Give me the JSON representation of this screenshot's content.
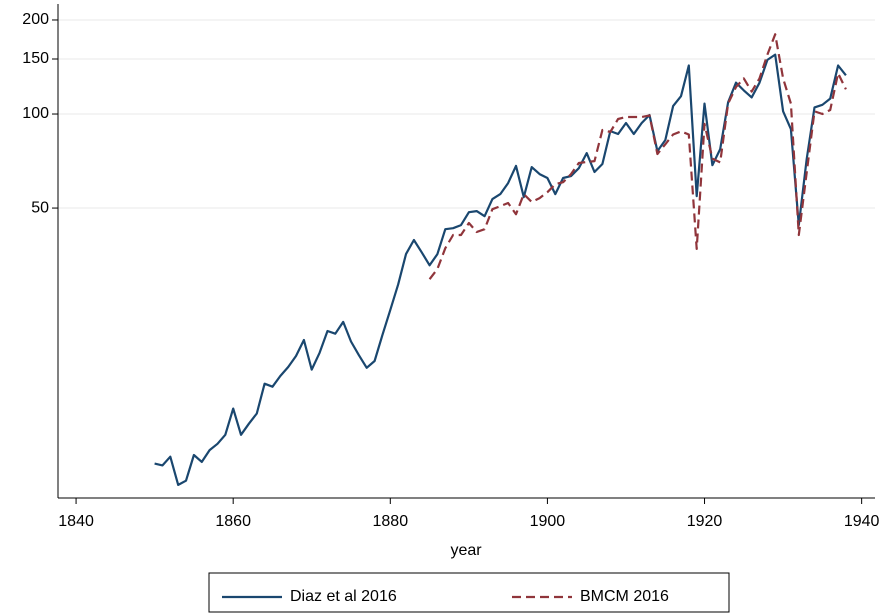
{
  "chart_data": {
    "type": "line",
    "xlabel": "year",
    "x": [
      1850,
      1851,
      1852,
      1853,
      1854,
      1855,
      1856,
      1857,
      1858,
      1859,
      1860,
      1861,
      1862,
      1863,
      1864,
      1865,
      1866,
      1867,
      1868,
      1869,
      1870,
      1871,
      1872,
      1873,
      1874,
      1875,
      1876,
      1877,
      1878,
      1879,
      1880,
      1881,
      1882,
      1883,
      1884,
      1885,
      1886,
      1887,
      1888,
      1889,
      1890,
      1891,
      1892,
      1893,
      1894,
      1895,
      1896,
      1897,
      1898,
      1899,
      1900,
      1901,
      1902,
      1903,
      1904,
      1905,
      1906,
      1907,
      1908,
      1909,
      1910,
      1911,
      1912,
      1913,
      1914,
      1915,
      1916,
      1917,
      1918,
      1919,
      1920,
      1921,
      1922,
      1923,
      1924,
      1925,
      1926,
      1927,
      1928,
      1929,
      1930,
      1931,
      1932,
      1933,
      1934,
      1935,
      1936,
      1937,
      1938
    ],
    "series": [
      {
        "name": "Diaz et al 2016",
        "color": "#1a476f",
        "dash": false,
        "values": [
          7.6,
          7.5,
          8.0,
          6.5,
          6.7,
          8.1,
          7.7,
          8.4,
          8.8,
          9.4,
          11.4,
          9.4,
          10.2,
          11.0,
          13.7,
          13.4,
          14.5,
          15.5,
          16.8,
          18.9,
          15.2,
          17.2,
          20.2,
          19.8,
          21.6,
          18.7,
          16.9,
          15.4,
          16.2,
          19.6,
          23.6,
          28.5,
          35.6,
          39.5,
          36.1,
          32.8,
          35.6,
          42.8,
          43.1,
          44.1,
          48.5,
          48.9,
          47.1,
          53.4,
          55.4,
          60.1,
          68.2,
          54.2,
          67.6,
          64.2,
          62.4,
          55.4,
          62.4,
          63.3,
          67.1,
          75.0,
          65.2,
          69.2,
          88.2,
          86.3,
          93.6,
          86.3,
          93.6,
          99.3,
          76.1,
          82.5,
          106,
          114,
          143,
          54.6,
          108,
          68.6,
          77.2,
          109,
          126,
          119,
          113,
          126,
          149,
          155,
          102,
          89.5,
          44.1,
          71.8,
          105,
          107,
          112,
          143,
          133
        ]
      },
      {
        "name": "BMCM 2016",
        "color": "#90353b",
        "dash": true,
        "values": [
          null,
          null,
          null,
          null,
          null,
          null,
          null,
          null,
          null,
          null,
          null,
          null,
          null,
          null,
          null,
          null,
          null,
          null,
          null,
          null,
          null,
          null,
          null,
          null,
          null,
          null,
          null,
          null,
          null,
          null,
          null,
          null,
          null,
          null,
          null,
          29.6,
          31.9,
          37.2,
          41.0,
          41.0,
          44.8,
          41.9,
          42.8,
          49.6,
          50.7,
          51.9,
          47.8,
          55.4,
          52.3,
          53.8,
          56.2,
          59.6,
          60.5,
          64.2,
          69.7,
          70.2,
          70.7,
          88.9,
          87.6,
          96.4,
          97.8,
          97.8,
          97.8,
          99,
          74.5,
          80,
          86,
          88,
          86,
          37,
          93,
          72,
          70,
          108,
          122,
          130,
          118,
          130,
          155,
          180,
          130,
          108,
          41,
          65,
          102,
          100,
          103,
          135,
          120
        ]
      }
    ],
    "xlim": [
      1837.7,
      1941.7
    ],
    "xticks": [
      1840,
      1860,
      1880,
      1900,
      1920,
      1940
    ],
    "ylim": [
      5.9,
      225
    ],
    "yticks": [
      50,
      100,
      150,
      200
    ],
    "ylog": true,
    "grid": true,
    "legend": "bottom"
  }
}
